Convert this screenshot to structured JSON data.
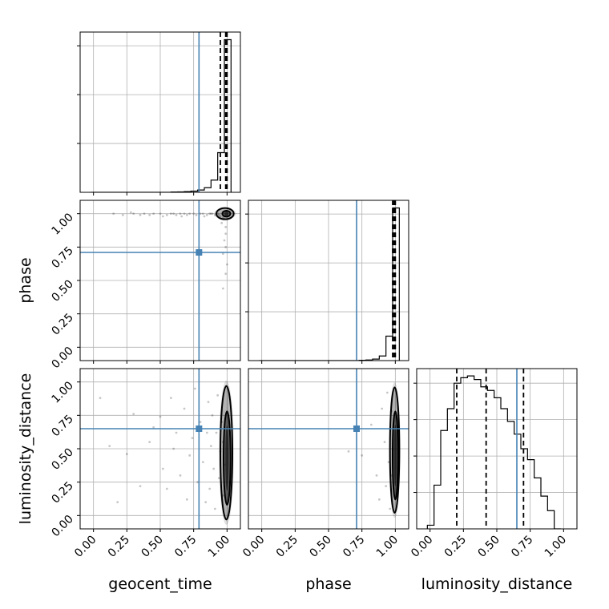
{
  "chart_data": {
    "type": "scatter",
    "variables": [
      "geocent_time",
      "phase",
      "luminosity_distance"
    ],
    "axis_labels": {
      "geocent_time": "geocent_time",
      "phase": "phase",
      "luminosity_distance": "luminosity_distance"
    },
    "range": [
      -0.1,
      1.1
    ],
    "ticks": [
      0.0,
      0.25,
      0.5,
      0.75,
      1.0
    ],
    "tick_labels": [
      "0.00",
      "0.25",
      "0.50",
      "0.75",
      "1.00"
    ],
    "grid": true,
    "truths": {
      "geocent_time": 0.79,
      "phase": 0.71,
      "luminosity_distance": 0.65
    },
    "colors": {
      "truth": "#4682b4",
      "hist": "#000000",
      "grid": "#b0b0b0",
      "points": "#000000"
    },
    "histograms": {
      "geocent_time": {
        "bin_edges": [
          -0.02,
          0.03,
          0.08,
          0.13,
          0.18,
          0.23,
          0.28,
          0.33,
          0.38,
          0.43,
          0.48,
          0.53,
          0.58,
          0.63,
          0.68,
          0.73,
          0.78,
          0.83,
          0.88,
          0.93,
          0.98,
          1.03
        ],
        "counts": [
          0,
          0,
          0,
          0,
          0,
          0,
          0,
          0,
          0,
          0,
          0,
          0,
          0.2,
          0.3,
          0.5,
          0.8,
          1.5,
          3.0,
          8.0,
          26.0,
          100.0
        ],
        "ymax": 105,
        "quantiles": [
          0.95,
          0.99,
          1.0
        ]
      },
      "phase": {
        "bin_edges": [
          -0.02,
          0.03,
          0.08,
          0.13,
          0.18,
          0.23,
          0.28,
          0.33,
          0.38,
          0.43,
          0.48,
          0.53,
          0.58,
          0.63,
          0.68,
          0.73,
          0.78,
          0.83,
          0.88,
          0.93,
          0.98,
          1.03
        ],
        "counts": [
          0,
          0,
          0,
          0,
          0,
          0,
          0,
          0,
          0,
          0,
          0,
          0,
          0,
          0,
          0,
          0.2,
          0.4,
          1.0,
          3.0,
          16.0,
          100.0
        ],
        "ymax": 105,
        "quantiles": [
          0.98,
          0.99,
          1.0
        ]
      },
      "luminosity_distance": {
        "bin_edges": [
          -0.02,
          0.03,
          0.08,
          0.13,
          0.18,
          0.23,
          0.28,
          0.33,
          0.38,
          0.43,
          0.48,
          0.53,
          0.58,
          0.63,
          0.68,
          0.73,
          0.78,
          0.83,
          0.88,
          0.93,
          0.98
        ],
        "counts": [
          2,
          24,
          54,
          66,
          80,
          83,
          84,
          82,
          78,
          76,
          72,
          66,
          59,
          52,
          44,
          38,
          28,
          18,
          10,
          0
        ],
        "ymax": 88,
        "quantiles": [
          0.2,
          0.42,
          0.7
        ]
      }
    },
    "panels_2d": [
      {
        "x": "geocent_time",
        "y": "phase",
        "points": [
          [
            0.15,
            1.0
          ],
          [
            0.22,
            0.99
          ],
          [
            0.3,
            1.0
          ],
          [
            0.38,
            1.0
          ],
          [
            0.42,
            0.99
          ],
          [
            0.45,
            1.0
          ],
          [
            0.5,
            1.0
          ],
          [
            0.55,
            0.99
          ],
          [
            0.58,
            1.0
          ],
          [
            0.6,
            1.0
          ],
          [
            0.62,
            0.99
          ],
          [
            0.65,
            1.0
          ],
          [
            0.68,
            1.0
          ],
          [
            0.7,
            0.99
          ],
          [
            0.72,
            1.0
          ],
          [
            0.75,
            1.0
          ],
          [
            0.77,
            0.99
          ],
          [
            0.8,
            1.0
          ],
          [
            0.82,
            1.0
          ],
          [
            0.85,
            0.99
          ],
          [
            0.87,
            1.0
          ],
          [
            0.89,
            1.0
          ],
          [
            0.91,
            0.99
          ],
          [
            0.93,
            1.0
          ],
          [
            0.95,
            0.98
          ],
          [
            0.97,
            0.97
          ],
          [
            0.98,
            0.96
          ],
          [
            0.99,
            0.9
          ],
          [
            0.99,
            0.85
          ],
          [
            0.98,
            0.8
          ],
          [
            0.99,
            0.75
          ],
          [
            0.97,
            0.7
          ],
          [
            1.0,
            0.62
          ],
          [
            0.97,
            0.44
          ],
          [
            0.96,
            0.93
          ],
          [
            0.94,
            0.99
          ],
          [
            0.88,
            1.0
          ],
          [
            0.83,
            0.98
          ],
          [
            0.66,
            0.98
          ],
          [
            0.52,
            0.98
          ],
          [
            0.35,
            0.99
          ],
          [
            0.28,
            1.01
          ],
          [
            0.99,
            0.55
          ]
        ],
        "contours": [
          {
            "center": [
              0.985,
              1.0
            ],
            "rx": 0.065,
            "ry": 0.042
          },
          {
            "center": [
              0.995,
              1.0
            ],
            "rx": 0.03,
            "ry": 0.022
          }
        ]
      },
      {
        "x": "geocent_time",
        "y": "luminosity_distance",
        "points": [
          [
            0.05,
            0.88
          ],
          [
            0.12,
            0.52
          ],
          [
            0.18,
            0.1
          ],
          [
            0.25,
            0.46
          ],
          [
            0.3,
            0.76
          ],
          [
            0.35,
            0.22
          ],
          [
            0.42,
            0.55
          ],
          [
            0.45,
            0.66
          ],
          [
            0.5,
            0.74
          ],
          [
            0.52,
            0.35
          ],
          [
            0.55,
            0.2
          ],
          [
            0.58,
            0.88
          ],
          [
            0.6,
            0.5
          ],
          [
            0.62,
            0.62
          ],
          [
            0.65,
            0.3
          ],
          [
            0.68,
            0.8
          ],
          [
            0.7,
            0.12
          ],
          [
            0.72,
            0.45
          ],
          [
            0.74,
            0.58
          ],
          [
            0.76,
            0.95
          ],
          [
            0.78,
            0.25
          ],
          [
            0.8,
            0.7
          ],
          [
            0.82,
            0.4
          ],
          [
            0.84,
            0.1
          ],
          [
            0.85,
            0.62
          ],
          [
            0.86,
            0.85
          ],
          [
            0.87,
            0.2
          ],
          [
            0.88,
            0.52
          ],
          [
            0.89,
            0.75
          ],
          [
            0.9,
            0.35
          ],
          [
            0.91,
            0.05
          ],
          [
            0.92,
            0.62
          ],
          [
            0.93,
            0.9
          ],
          [
            0.94,
            0.28
          ],
          [
            0.95,
            0.48
          ],
          [
            0.96,
            0.7
          ],
          [
            0.97,
            0.15
          ],
          [
            0.97,
            0.55
          ],
          [
            0.98,
            0.38
          ]
        ],
        "contours": [
          {
            "center": [
              0.995,
              0.47
            ],
            "rx": 0.045,
            "ry": 0.5
          },
          {
            "center": [
              1.0,
              0.43
            ],
            "rx": 0.026,
            "ry": 0.35
          }
        ]
      },
      {
        "x": "phase",
        "y": "luminosity_distance",
        "points": [
          [
            0.65,
            0.48
          ],
          [
            0.75,
            0.45
          ],
          [
            0.82,
            0.68
          ],
          [
            0.86,
            0.3
          ],
          [
            0.88,
            0.12
          ],
          [
            0.9,
            0.8
          ],
          [
            0.92,
            0.55
          ],
          [
            0.93,
            0.22
          ],
          [
            0.94,
            0.92
          ],
          [
            0.95,
            0.4
          ],
          [
            0.96,
            0.65
          ],
          [
            0.96,
            0.05
          ],
          [
            0.97,
            0.3
          ],
          [
            0.97,
            0.78
          ],
          [
            0.98,
            0.5
          ]
        ],
        "contours": [
          {
            "center": [
              0.995,
              0.49
            ],
            "rx": 0.035,
            "ry": 0.47
          },
          {
            "center": [
              1.0,
              0.45
            ],
            "rx": 0.02,
            "ry": 0.33
          }
        ]
      }
    ]
  }
}
